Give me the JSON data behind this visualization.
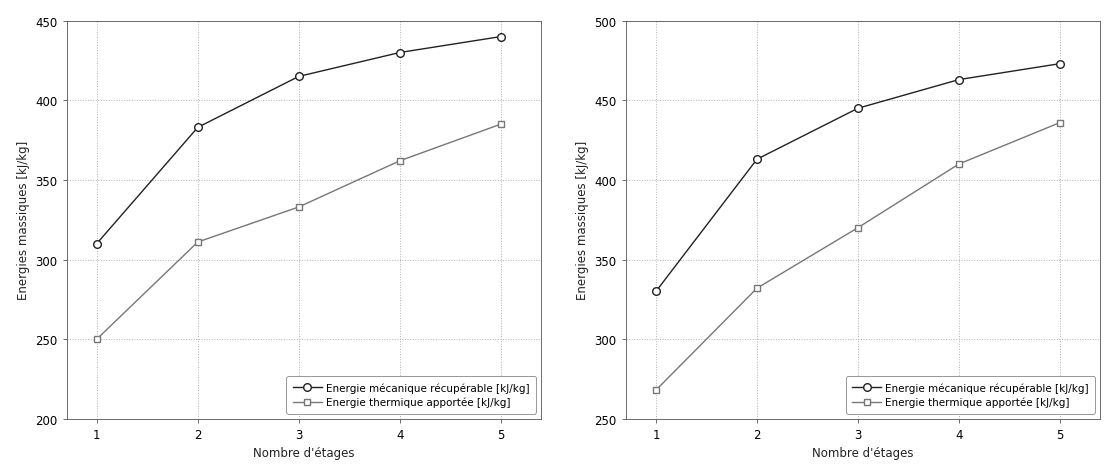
{
  "left": {
    "meca": [
      310,
      383,
      415,
      430,
      440
    ],
    "therm": [
      250,
      311,
      333,
      362,
      385
    ],
    "ylim": [
      200,
      450
    ],
    "yticks": [
      200,
      250,
      300,
      350,
      400,
      450
    ]
  },
  "right": {
    "meca": [
      330,
      413,
      445,
      463,
      473
    ],
    "therm": [
      268,
      332,
      370,
      410,
      436
    ],
    "ylim": [
      250,
      500
    ],
    "yticks": [
      250,
      300,
      350,
      400,
      450,
      500
    ]
  },
  "x": [
    1,
    2,
    3,
    4,
    5
  ],
  "xlabel": "Nombre d'étages",
  "ylabel": "Energies massiques [kJ/kg]",
  "legend_meca": "Energie mécanique récupérable [kJ/kg]",
  "legend_therm": "Energie thermique apportée [kJ/kg]",
  "line_color_meca": "#222222",
  "line_color_therm": "#777777",
  "bg_color": "#ffffff",
  "grid_color": "#b0b0b0",
  "font_size": 8.5,
  "label_font_size": 8.5,
  "legend_font_size": 7.5
}
